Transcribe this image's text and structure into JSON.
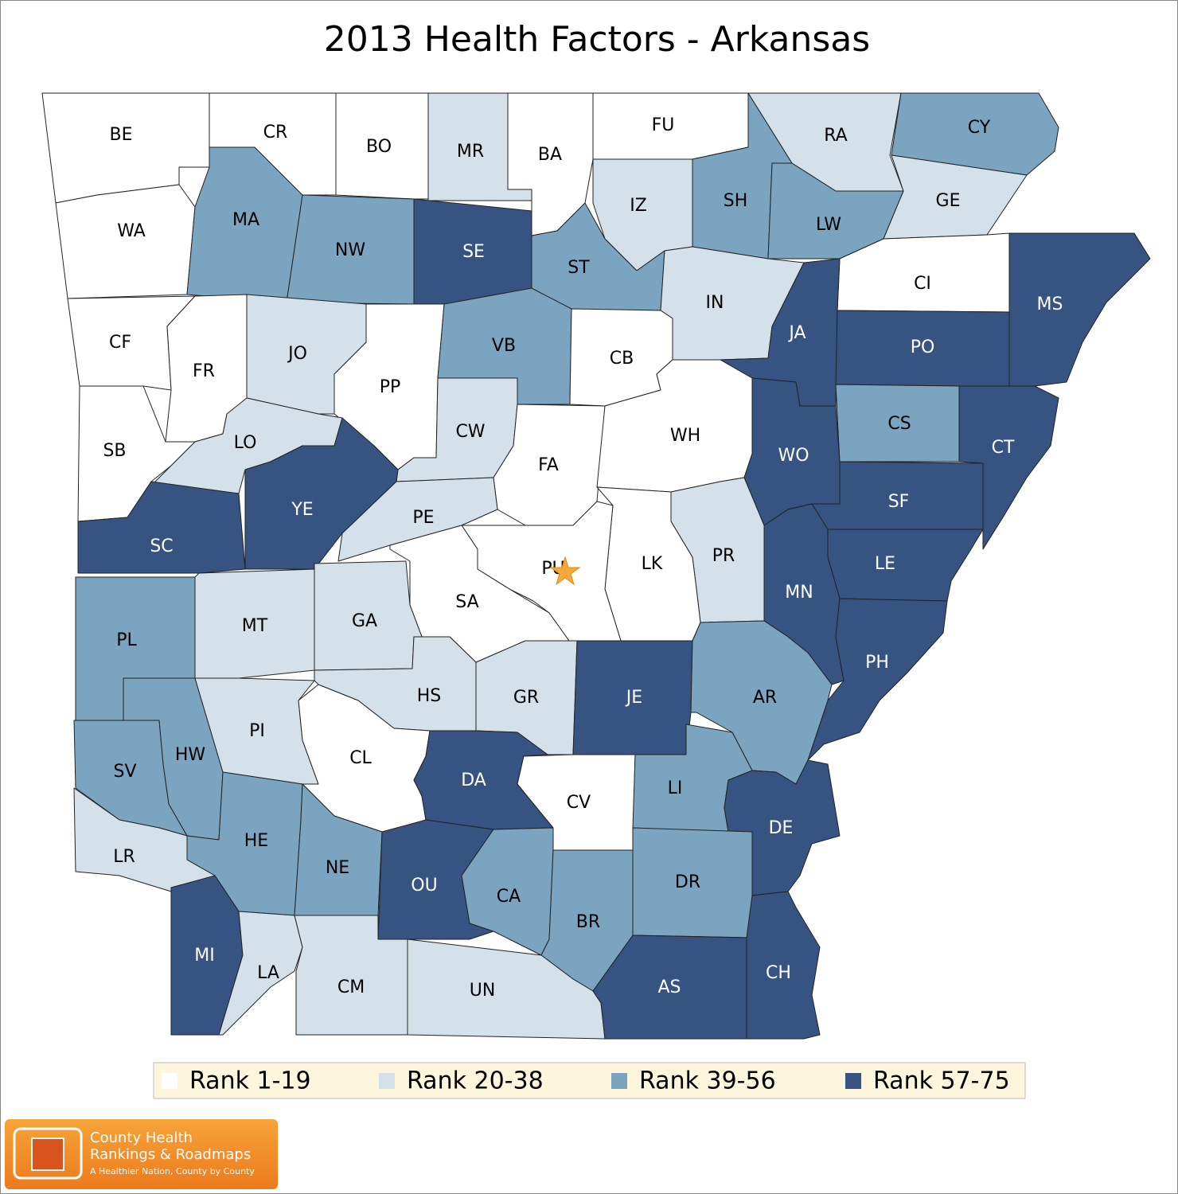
{
  "title": "2013 Health Factors - Arkansas",
  "legend": [
    {
      "label": "Rank 1-19",
      "color": "#ffffff"
    },
    {
      "label": "Rank 20-38",
      "color": "#d4e1ea"
    },
    {
      "label": "Rank 39-56",
      "color": "#7ba4c0"
    },
    {
      "label": "Rank 57-75",
      "color": "#365382"
    }
  ],
  "counties": [
    {
      "label": "BE",
      "color": "#ffffff"
    },
    {
      "label": "CR",
      "color": "#ffffff"
    },
    {
      "label": "BO",
      "color": "#ffffff"
    },
    {
      "label": "MR",
      "color": "#d4e1ea"
    },
    {
      "label": "BA",
      "color": "#ffffff"
    },
    {
      "label": "FU",
      "color": "#ffffff"
    },
    {
      "label": "RA",
      "color": "#d4e1ea"
    },
    {
      "label": "CY",
      "color": "#7ba4c0"
    },
    {
      "label": "SH",
      "color": "#7ba4c0"
    },
    {
      "label": "IZ",
      "color": "#d4e1ea"
    },
    {
      "label": "LW",
      "color": "#7ba4c0"
    },
    {
      "label": "GE",
      "color": "#d4e1ea"
    },
    {
      "label": "WA",
      "color": "#ffffff"
    },
    {
      "label": "MA",
      "color": "#7ba4c0"
    },
    {
      "label": "NW",
      "color": "#7ba4c0"
    },
    {
      "label": "SE",
      "color": "#365382"
    },
    {
      "label": "ST",
      "color": "#7ba4c0"
    },
    {
      "label": "IN",
      "color": "#d4e1ea"
    },
    {
      "label": "CI",
      "color": "#ffffff"
    },
    {
      "label": "MS",
      "color": "#365382"
    },
    {
      "label": "JA",
      "color": "#365382"
    },
    {
      "label": "PO",
      "color": "#365382"
    },
    {
      "label": "CF",
      "color": "#ffffff"
    },
    {
      "label": "FR",
      "color": "#ffffff"
    },
    {
      "label": "JO",
      "color": "#d4e1ea"
    },
    {
      "label": "PP",
      "color": "#ffffff"
    },
    {
      "label": "VB",
      "color": "#7ba4c0"
    },
    {
      "label": "CB",
      "color": "#ffffff"
    },
    {
      "label": "SB",
      "color": "#ffffff"
    },
    {
      "label": "LO",
      "color": "#d4e1ea"
    },
    {
      "label": "CW",
      "color": "#d4e1ea"
    },
    {
      "label": "FA",
      "color": "#ffffff"
    },
    {
      "label": "WH",
      "color": "#ffffff"
    },
    {
      "label": "CS",
      "color": "#7ba4c0"
    },
    {
      "label": "CT",
      "color": "#365382"
    },
    {
      "label": "WO",
      "color": "#365382"
    },
    {
      "label": "SF",
      "color": "#365382"
    },
    {
      "label": "YE",
      "color": "#365382"
    },
    {
      "label": "PE",
      "color": "#d4e1ea"
    },
    {
      "label": "SC",
      "color": "#365382"
    },
    {
      "label": "LE",
      "color": "#365382"
    },
    {
      "label": "PR",
      "color": "#d4e1ea"
    },
    {
      "label": "LK",
      "color": "#ffffff"
    },
    {
      "label": "PU",
      "color": "#ffffff"
    },
    {
      "label": "SA",
      "color": "#ffffff"
    },
    {
      "label": "MN",
      "color": "#365382"
    },
    {
      "label": "PL",
      "color": "#7ba4c0"
    },
    {
      "label": "MT",
      "color": "#d4e1ea"
    },
    {
      "label": "GA",
      "color": "#d4e1ea"
    },
    {
      "label": "PH",
      "color": "#365382"
    },
    {
      "label": "HS",
      "color": "#d4e1ea"
    },
    {
      "label": "GR",
      "color": "#d4e1ea"
    },
    {
      "label": "JE",
      "color": "#365382"
    },
    {
      "label": "AR",
      "color": "#7ba4c0"
    },
    {
      "label": "SV",
      "color": "#7ba4c0"
    },
    {
      "label": "HW",
      "color": "#7ba4c0"
    },
    {
      "label": "PI",
      "color": "#d4e1ea"
    },
    {
      "label": "CL",
      "color": "#ffffff"
    },
    {
      "label": "DA",
      "color": "#365382"
    },
    {
      "label": "CV",
      "color": "#ffffff"
    },
    {
      "label": "LI",
      "color": "#7ba4c0"
    },
    {
      "label": "DE",
      "color": "#365382"
    },
    {
      "label": "LR",
      "color": "#d4e1ea"
    },
    {
      "label": "HE",
      "color": "#7ba4c0"
    },
    {
      "label": "NE",
      "color": "#7ba4c0"
    },
    {
      "label": "OU",
      "color": "#365382"
    },
    {
      "label": "CA",
      "color": "#7ba4c0"
    },
    {
      "label": "BR",
      "color": "#7ba4c0"
    },
    {
      "label": "DR",
      "color": "#7ba4c0"
    },
    {
      "label": "MI",
      "color": "#365382"
    },
    {
      "label": "LA",
      "color": "#d4e1ea"
    },
    {
      "label": "CM",
      "color": "#d4e1ea"
    },
    {
      "label": "UN",
      "color": "#d4e1ea"
    },
    {
      "label": "AS",
      "color": "#365382"
    },
    {
      "label": "CH",
      "color": "#365382"
    }
  ],
  "logo": {
    "line1": "County Health",
    "line2": "Rankings & Roadmaps",
    "tagline": "A Healthier Nation, County by County"
  }
}
